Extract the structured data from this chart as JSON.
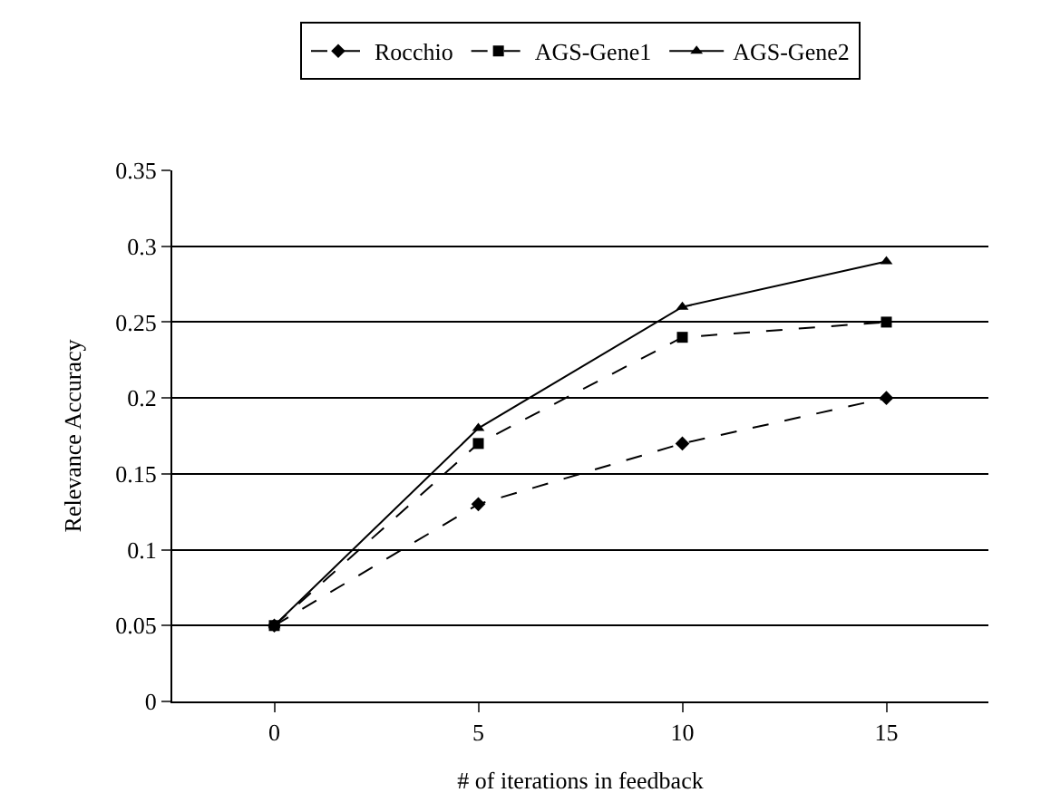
{
  "chart_data": {
    "type": "line",
    "xlabel": "# of iterations in feedback",
    "ylabel": "Relevance Accuracy",
    "categories": [
      "0",
      "5",
      "10",
      "15"
    ],
    "series": [
      {
        "name": "Rocchio",
        "color": "#000000",
        "values": [
          0.05,
          0.13,
          0.17,
          0.2
        ],
        "marker": "diamond",
        "line_style": "dashed"
      },
      {
        "name": "AGS-Gene1",
        "color": "#000000",
        "values": [
          0.05,
          0.17,
          0.24,
          0.25
        ],
        "marker": "square",
        "line_style": "dashed"
      },
      {
        "name": "AGS-Gene2",
        "color": "#000000",
        "values": [
          0.05,
          0.18,
          0.26,
          0.29
        ],
        "marker": "triangle",
        "line_style": "solid"
      }
    ],
    "ylim": [
      0,
      0.35
    ],
    "yticks": [
      0,
      0.05,
      0.1,
      0.15,
      0.2,
      0.25,
      0.3,
      0.35
    ],
    "grid": "y",
    "legend": "top"
  }
}
